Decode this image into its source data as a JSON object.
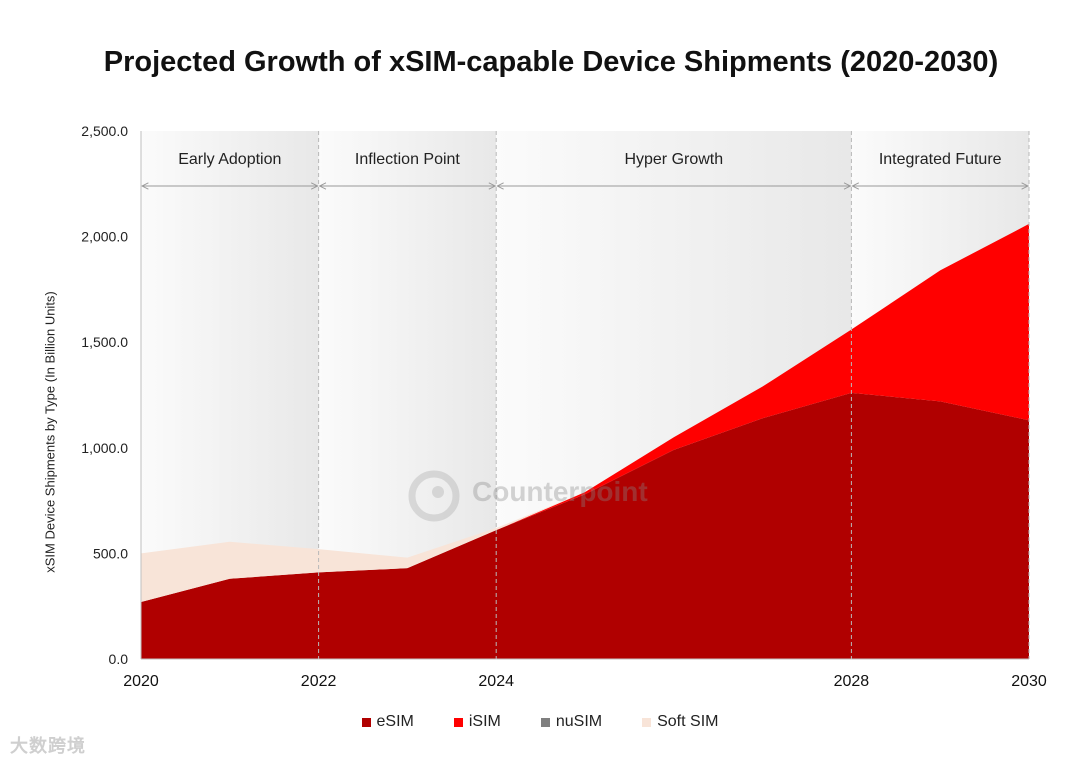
{
  "title": "Projected Growth of xSIM-capable Device Shipments (2020-2030)",
  "watermark_text": "大数跨境",
  "logo_text": "Counterpoint",
  "chart_data": {
    "type": "area",
    "stacked": true,
    "title": "Projected Growth of xSIM-capable Device Shipments (2020-2030)",
    "xlabel": "",
    "ylabel": "xSIM Device Shipments by Type (In Billion Units)",
    "x": [
      2020,
      2021,
      2022,
      2023,
      2024,
      2025,
      2026,
      2027,
      2028,
      2029,
      2030
    ],
    "xticks": [
      "2020",
      "2022",
      "2024",
      "2028",
      "2030"
    ],
    "xtick_values": [
      2020,
      2022,
      2024,
      2028,
      2030
    ],
    "ylim": [
      0,
      2500
    ],
    "yticks": [
      "0.0",
      "500.0",
      "1,000.0",
      "1,500.0",
      "2,000.0",
      "2,500.0"
    ],
    "ytick_values": [
      0,
      500,
      1000,
      1500,
      2000,
      2500
    ],
    "legend_position": "bottom",
    "series": [
      {
        "name": "eSIM",
        "color": "#b00000",
        "values": [
          270,
          380,
          410,
          430,
          610,
          780,
          990,
          1140,
          1260,
          1220,
          1130
        ]
      },
      {
        "name": "iSIM",
        "color": "#ff0000",
        "values": [
          0,
          0,
          0,
          0,
          0,
          10,
          60,
          150,
          300,
          620,
          930
        ]
      },
      {
        "name": "nuSIM",
        "color": "#7f7f7f",
        "values": [
          0,
          0,
          0,
          0,
          0,
          0,
          0,
          0,
          0,
          0,
          0
        ]
      },
      {
        "name": "Soft SIM",
        "color": "#f8e4d8",
        "values": [
          230,
          175,
          110,
          50,
          10,
          0,
          0,
          0,
          0,
          0,
          0
        ]
      }
    ],
    "phases": [
      {
        "label": "Early Adoption",
        "start": 2020,
        "end": 2022
      },
      {
        "label": "Inflection Point",
        "start": 2022,
        "end": 2024
      },
      {
        "label": "Hyper Growth",
        "start": 2024,
        "end": 2028
      },
      {
        "label": "Integrated Future",
        "start": 2028,
        "end": 2030
      }
    ]
  }
}
